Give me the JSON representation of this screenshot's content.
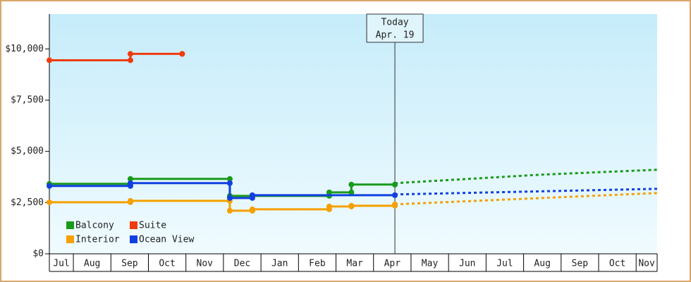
{
  "chart_data": {
    "type": "step-line",
    "xlim": [
      0.36,
      16.56
    ],
    "xticks": [
      {
        "value": 0,
        "label": "Jul"
      },
      {
        "value": 1,
        "label": "Aug"
      },
      {
        "value": 2,
        "label": "Sep"
      },
      {
        "value": 3,
        "label": "Oct"
      },
      {
        "value": 4,
        "label": "Nov"
      },
      {
        "value": 5,
        "label": "Dec"
      },
      {
        "value": 6,
        "label": "Jan"
      },
      {
        "value": 7,
        "label": "Feb"
      },
      {
        "value": 8,
        "label": "Mar"
      },
      {
        "value": 9,
        "label": "Apr"
      },
      {
        "value": 10,
        "label": "May"
      },
      {
        "value": 11,
        "label": "Jun"
      },
      {
        "value": 12,
        "label": "Jul"
      },
      {
        "value": 13,
        "label": "Aug"
      },
      {
        "value": 14,
        "label": "Sep"
      },
      {
        "value": 15,
        "label": "Oct"
      },
      {
        "value": 16,
        "label": "Nov"
      }
    ],
    "ylim": [
      0,
      11700
    ],
    "yticks": [
      {
        "value": 0,
        "label": "$0"
      },
      {
        "value": 2500,
        "label": "$2,500"
      },
      {
        "value": 5000,
        "label": "$5,000"
      },
      {
        "value": 7500,
        "label": "$7,500"
      },
      {
        "value": 10000,
        "label": "$10,000"
      }
    ],
    "annotation": {
      "x": 9.57,
      "label": "Today",
      "date": "Apr. 19"
    },
    "series": [
      {
        "name": "Balcony",
        "color": "#1a9a1a",
        "x": [
          0.36,
          2.52,
          5.17,
          5.77,
          7.82,
          8.41,
          9.57
        ],
        "values": [
          3414,
          3655,
          2828,
          2828,
          3000,
          3379,
          3379
        ],
        "forecast": {
          "x": [
            9.57,
            13.46,
            16.56
          ],
          "values": [
            3448,
            3862,
            4103
          ]
        }
      },
      {
        "name": "Suite",
        "color": "#f03c10",
        "x": [
          0.36,
          2.52,
          3.9
        ],
        "values": [
          9448,
          9759,
          9759
        ]
      },
      {
        "name": "Interior",
        "color": "#f5a000",
        "x": [
          0.36,
          2.52,
          5.17,
          5.77,
          7.82,
          8.41,
          9.57
        ],
        "values": [
          2517,
          2586,
          2103,
          2172,
          2310,
          2345,
          2414
        ],
        "forecast": {
          "x": [
            9.57,
            16.56
          ],
          "values": [
            2414,
            2966
          ]
        }
      },
      {
        "name": "Ocean View",
        "color": "#1040e0",
        "x": [
          0.36,
          2.52,
          5.17,
          5.77,
          9.57
        ],
        "values": [
          3310,
          3448,
          2724,
          2862,
          2862
        ],
        "forecast": {
          "x": [
            9.57,
            16.56
          ],
          "values": [
            2897,
            3172
          ]
        }
      }
    ]
  }
}
